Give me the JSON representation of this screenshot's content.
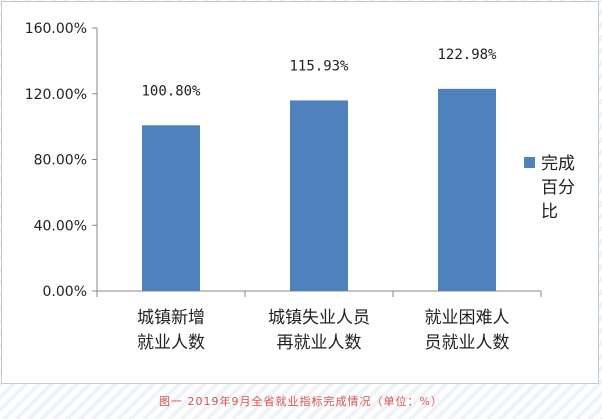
{
  "chart_data": {
    "type": "bar",
    "categories": [
      [
        "城镇新增",
        "就业人数"
      ],
      [
        "城镇失业人员",
        "再就业人数"
      ],
      [
        "就业困难人",
        "员就业人数"
      ]
    ],
    "series": [
      {
        "name": "完成百分比",
        "values": [
          100.8,
          115.93,
          122.98
        ],
        "labels": [
          "100.80%",
          "115.93%",
          "122.98%"
        ],
        "color": "#4f81bd"
      }
    ],
    "legend": {
      "position": "right",
      "lines": [
        "完成",
        "百分",
        "比"
      ]
    },
    "yticks": [
      "0.00%",
      "40.00%",
      "80.00%",
      "120.00%",
      "160.00%"
    ],
    "ylim": [
      0,
      160
    ],
    "grid": false
  },
  "caption": {
    "text": "图一  2019年9月全省就业指标完成情况（单位：%）",
    "color": "#d9534f"
  }
}
